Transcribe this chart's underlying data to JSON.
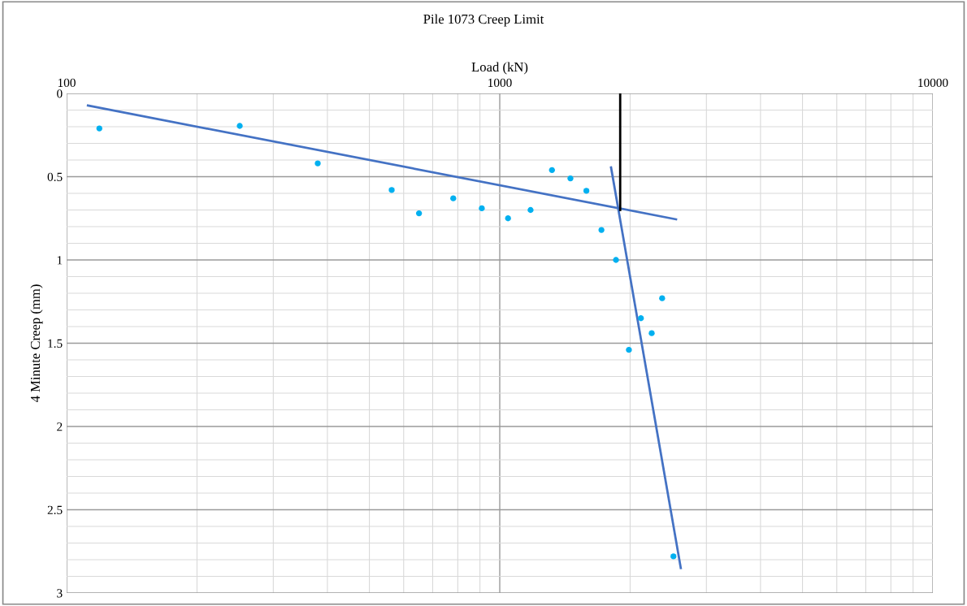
{
  "chart_data": {
    "type": "scatter",
    "title": "Pile 1073 Creep Limit",
    "xlabel": "Load (kN)",
    "ylabel": "4 Minute Creep (mm)",
    "log": "x",
    "xlim": [
      100,
      10000
    ],
    "xticks": [
      100,
      1000,
      10000
    ],
    "ylim": [
      3,
      0
    ],
    "yticks": [
      0,
      0.5,
      1,
      1.5,
      2,
      2.5,
      3
    ],
    "grid": true,
    "series": [
      {
        "color": "#00b0f0",
        "marker": "circle",
        "x": [
          119,
          251,
          380,
          563,
          651,
          781,
          909,
          1045,
          1178,
          1320,
          1456,
          1585,
          1717,
          1855,
          2371,
          2118,
          2243,
          1987,
          2518
        ],
        "values": [
          0.21,
          0.195,
          0.42,
          0.58,
          0.72,
          0.63,
          0.69,
          0.75,
          0.7,
          0.46,
          0.51,
          0.585,
          0.82,
          1.0,
          1.23,
          1.35,
          1.44,
          1.54,
          2.78
        ]
      },
      {
        "type": "line",
        "color": "#4472c4",
        "marker": "none",
        "x": [
          112,
          2553
        ],
        "values": [
          0.073,
          0.756
        ]
      },
      {
        "type": "line",
        "color": "#4472c4",
        "marker": "none",
        "x": [
          1807,
          2618
        ],
        "values": [
          0.444,
          2.85
        ]
      },
      {
        "type": "line",
        "color": "#000000",
        "marker": "none",
        "x": [
          1897,
          1897
        ],
        "values": [
          0,
          0.7
        ]
      }
    ]
  }
}
